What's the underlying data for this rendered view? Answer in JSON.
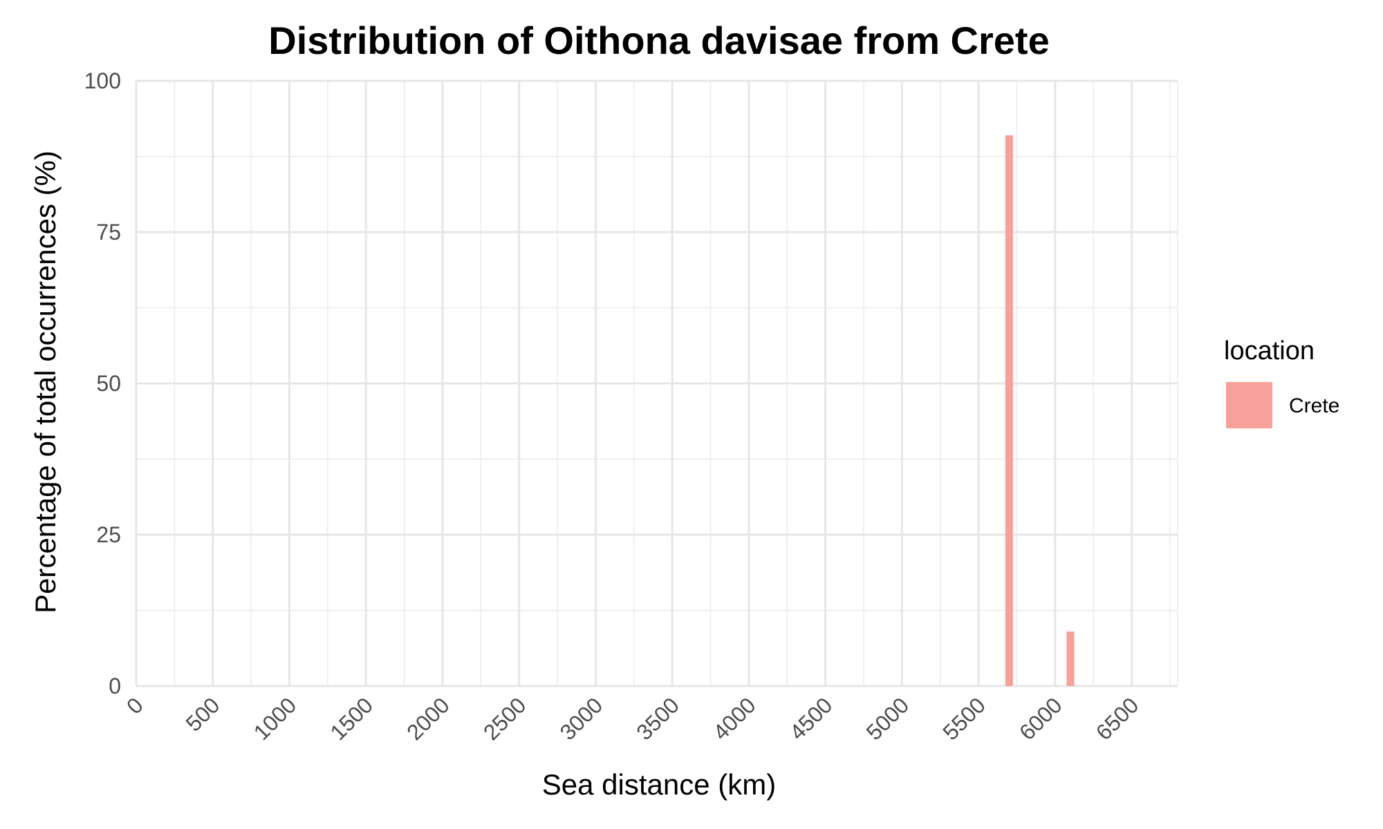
{
  "chart_data": {
    "type": "bar",
    "title": "Distribution of Oithona davisae from Crete",
    "xlabel": "Sea distance (km)",
    "ylabel": "Percentage of total occurrences (%)",
    "xlim": [
      0,
      6800
    ],
    "ylim": [
      0,
      100
    ],
    "x_ticks": [
      0,
      500,
      1000,
      1500,
      2000,
      2500,
      3000,
      3500,
      4000,
      4500,
      5000,
      5500,
      6000,
      6500
    ],
    "y_ticks": [
      0,
      25,
      50,
      75,
      100
    ],
    "bar_width_km": 50,
    "grid": true,
    "legend": {
      "title": "location",
      "position": "right",
      "entries": [
        {
          "label": "Crete",
          "color": "#F8A09A"
        }
      ]
    },
    "series": [
      {
        "name": "Crete",
        "color": "#F8A09A",
        "points": [
          {
            "x": 5700,
            "y": 91
          },
          {
            "x": 6100,
            "y": 9
          }
        ]
      }
    ]
  }
}
